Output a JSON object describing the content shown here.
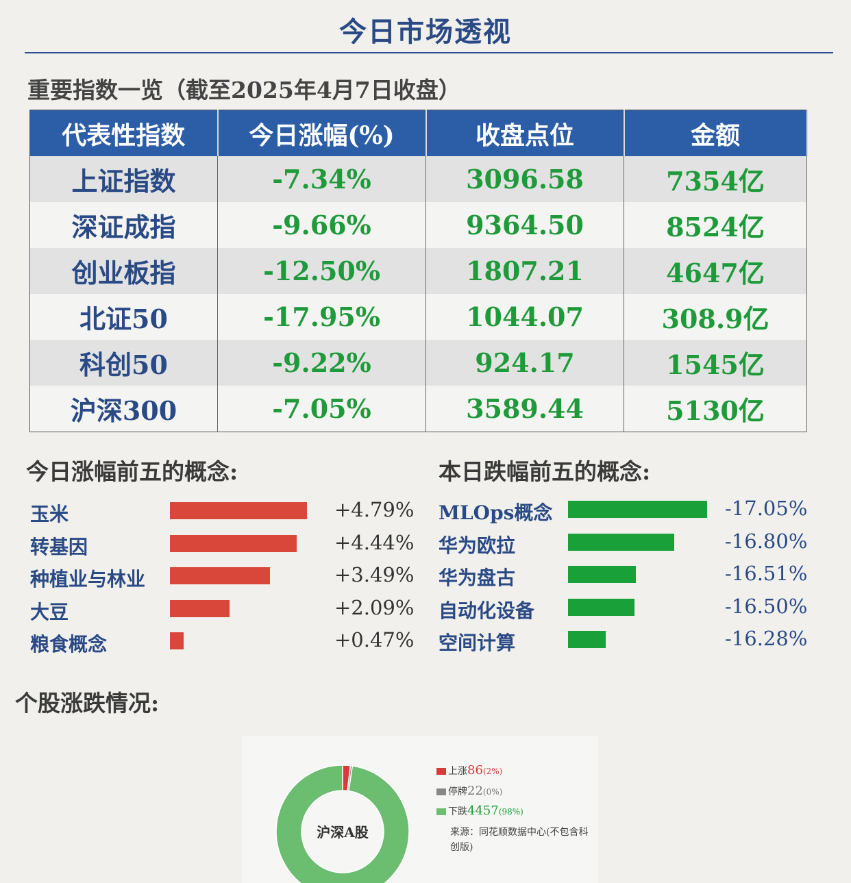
{
  "page": {
    "title": "今日市场透视"
  },
  "index_section": {
    "title": "重要指数一览（截至2025年4月7日收盘）",
    "headers": [
      "代表性指数",
      "今日涨幅(%)",
      "收盘点位",
      "金额"
    ],
    "rows": [
      {
        "name": "上证指数",
        "change": "-7.34%",
        "close": "3096.58",
        "amount": "7354亿"
      },
      {
        "name": "深证成指",
        "change": "-9.66%",
        "close": "9364.50",
        "amount": "8524亿"
      },
      {
        "name": "创业板指",
        "change": "-12.50%",
        "close": "1807.21",
        "amount": "4647亿"
      },
      {
        "name": "北证50",
        "change": "-17.95%",
        "close": "1044.07",
        "amount": "308.9亿"
      },
      {
        "name": "科创50",
        "change": "-9.22%",
        "close": "924.17",
        "amount": "1545亿"
      },
      {
        "name": "沪深300",
        "change": "-7.05%",
        "close": "3589.44",
        "amount": "5130亿"
      }
    ]
  },
  "rise_section": {
    "title": "今日涨幅前五的概念:"
  },
  "fall_section": {
    "title": "本日跌幅前五的概念:"
  },
  "stock_section": {
    "title": "个股涨跌情况:"
  },
  "colors": {
    "header": "#2c5ea8",
    "rise": "#d9473a",
    "fall": "#1aa038",
    "donut_up": "#d93a3a",
    "donut_flat": "#888888",
    "donut_down": "#6bbd6f"
  },
  "chart_data": [
    {
      "type": "bar",
      "categories": [
        "玉米",
        "转基因",
        "种植业与林业",
        "大豆",
        "粮食概念"
      ],
      "values": [
        4.79,
        4.44,
        3.49,
        2.09,
        0.47
      ],
      "value_labels": [
        "+4.79%",
        "+4.44%",
        "+3.49%",
        "+2.09%",
        "+0.47%"
      ]
    },
    {
      "type": "bar",
      "categories": [
        "MLOps概念",
        "华为欧拉",
        "华为盘古",
        "自动化设备",
        "空间计算"
      ],
      "values": [
        -17.05,
        -16.8,
        -16.51,
        -16.5,
        -16.28
      ],
      "value_labels": [
        "-17.05%",
        "-16.80%",
        "-16.51%",
        "-16.50%",
        "-16.28%"
      ]
    },
    {
      "type": "pie",
      "center_label": "沪深A股",
      "slices": [
        {
          "label": "上涨",
          "count": "86",
          "pct": "(2%)",
          "value": 86
        },
        {
          "label": "停牌",
          "count": "22",
          "pct": "(0%)",
          "value": 22
        },
        {
          "label": "下跌",
          "count": "4457",
          "pct": "(98%)",
          "value": 4457
        }
      ],
      "source": "来源：同花顺数据中心(不包含科创版)"
    }
  ]
}
